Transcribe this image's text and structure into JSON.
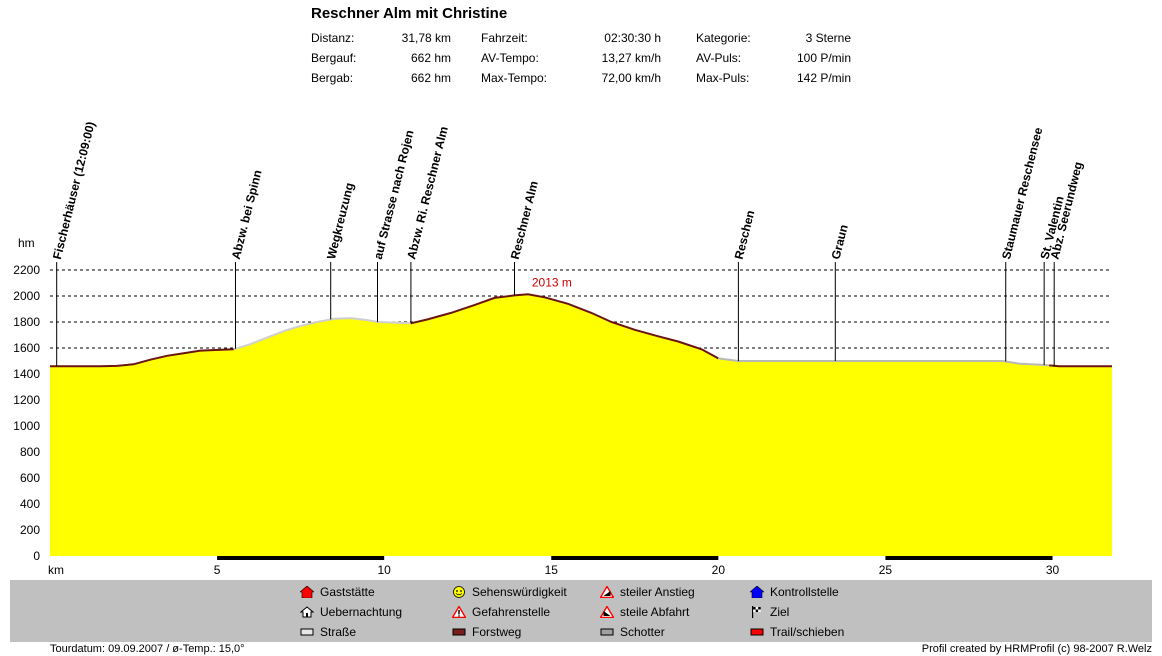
{
  "title": "Reschner Alm mit Christine",
  "stats": [
    {
      "label": "Distanz:",
      "value": "31,78 km"
    },
    {
      "label": "Bergauf:",
      "value": "662 hm"
    },
    {
      "label": "Bergab:",
      "value": "662 hm"
    },
    {
      "label": "Fahrzeit:",
      "value": "02:30:30 h"
    },
    {
      "label": "AV-Tempo:",
      "value": "13,27 km/h"
    },
    {
      "label": "Max-Tempo:",
      "value": "72,00 km/h"
    },
    {
      "label": "Kategorie:",
      "value": "3 Sterne"
    },
    {
      "label": "AV-Puls:",
      "value": "100 P/min"
    },
    {
      "label": "Max-Puls:",
      "value": "142 P/min"
    }
  ],
  "chart_data": {
    "type": "area",
    "xlabel": "km",
    "ylabel": "hm",
    "xlim": [
      0,
      31.78
    ],
    "ylim": [
      0,
      2200
    ],
    "x_ticks": [
      5,
      10,
      15,
      20,
      25,
      30
    ],
    "y_ticks": [
      0,
      200,
      400,
      600,
      800,
      1000,
      1200,
      1400,
      1600,
      1800,
      2000,
      2200
    ],
    "grid": "horizontal dashed",
    "fill_color": "#ffff00",
    "profile": [
      [
        0,
        1460
      ],
      [
        1.5,
        1460
      ],
      [
        2.0,
        1462
      ],
      [
        2.5,
        1475
      ],
      [
        3.0,
        1510
      ],
      [
        3.5,
        1540
      ],
      [
        4.0,
        1560
      ],
      [
        4.5,
        1580
      ],
      [
        5.5,
        1590
      ],
      [
        6.0,
        1630
      ],
      [
        6.5,
        1680
      ],
      [
        7.0,
        1730
      ],
      [
        7.5,
        1770
      ],
      [
        8.0,
        1800
      ],
      [
        8.5,
        1825
      ],
      [
        9.0,
        1830
      ],
      [
        9.5,
        1815
      ],
      [
        9.8,
        1800
      ],
      [
        10.3,
        1795
      ],
      [
        10.8,
        1790
      ],
      [
        11.3,
        1820
      ],
      [
        12.0,
        1870
      ],
      [
        12.7,
        1930
      ],
      [
        13.3,
        1985
      ],
      [
        13.9,
        2005
      ],
      [
        14.3,
        2013
      ],
      [
        14.8,
        1990
      ],
      [
        15.5,
        1940
      ],
      [
        16.2,
        1870
      ],
      [
        16.8,
        1800
      ],
      [
        17.5,
        1740
      ],
      [
        18.2,
        1690
      ],
      [
        18.8,
        1650
      ],
      [
        19.5,
        1590
      ],
      [
        20.0,
        1520
      ],
      [
        20.6,
        1500
      ],
      [
        28.5,
        1500
      ],
      [
        29.0,
        1480
      ],
      [
        29.7,
        1470
      ],
      [
        30.2,
        1460
      ],
      [
        31.78,
        1460
      ]
    ],
    "max_label": "2013 m",
    "max_point": [
      14.3,
      2013
    ],
    "waypoints": [
      {
        "km": 0.2,
        "name": "Fischerhäuser (12:09:00)"
      },
      {
        "km": 5.55,
        "name": "Abzw. bei Spinn"
      },
      {
        "km": 8.4,
        "name": "Wegkreuzung"
      },
      {
        "km": 9.8,
        "name": "auf Strasse nach Rojen"
      },
      {
        "km": 10.8,
        "name": "Abzw. Ri. Reschner Alm"
      },
      {
        "km": 13.9,
        "name": "Reschner Alm"
      },
      {
        "km": 20.6,
        "name": "Reschen"
      },
      {
        "km": 23.5,
        "name": "Graun"
      },
      {
        "km": 28.6,
        "name": "Staumauer Reschensee"
      },
      {
        "km": 29.75,
        "name": "St. Valentin"
      },
      {
        "km": 30.05,
        "name": "Abz. Seerundweg"
      }
    ],
    "surface_segments": [
      {
        "from": 0,
        "to": 5.5,
        "type": "Forstweg"
      },
      {
        "from": 5.5,
        "to": 10.8,
        "type": "Straße"
      },
      {
        "from": 10.8,
        "to": 20.0,
        "type": "Forstweg"
      },
      {
        "from": 20.0,
        "to": 29.9,
        "type": "Schotter"
      },
      {
        "from": 29.9,
        "to": 31.78,
        "type": "Forstweg"
      }
    ]
  },
  "legend": [
    {
      "label": "Gaststätte",
      "icon": "house-red-icon",
      "color": "#ff0000"
    },
    {
      "label": "Uebernachtung",
      "icon": "hut-icon",
      "color": "#ffffff"
    },
    {
      "label": "Straße",
      "icon": "road-icon",
      "color": "#e8e8e8"
    },
    {
      "label": "Sehenswürdigkeit",
      "icon": "smiley-icon",
      "color": "#ffff00"
    },
    {
      "label": "Gefahrenstelle",
      "icon": "warning-icon",
      "color": "#ff0000"
    },
    {
      "label": "Forstweg",
      "icon": "forest-path-icon",
      "color": "#7a1f1f"
    },
    {
      "label": "steiler Anstieg",
      "icon": "steep-climb-icon",
      "color": "#ff0000"
    },
    {
      "label": "steile Abfahrt",
      "icon": "steep-descent-icon",
      "color": "#ff0000"
    },
    {
      "label": "Schotter",
      "icon": "gravel-icon",
      "color": "#a0a0a0"
    },
    {
      "label": "Kontrollstelle",
      "icon": "checkpoint-icon",
      "color": "#0000ff"
    },
    {
      "label": "Ziel",
      "icon": "finish-flag-icon",
      "color": "#000000"
    },
    {
      "label": "Trail/schieben",
      "icon": "trail-icon",
      "color": "#ff0000"
    }
  ],
  "footer_left": "Tourdatum: 09.09.2007  /  ø-Temp.: 15,0°",
  "footer_right": "Profil created by HRMProfil (c) 98-2007 R.Welz"
}
